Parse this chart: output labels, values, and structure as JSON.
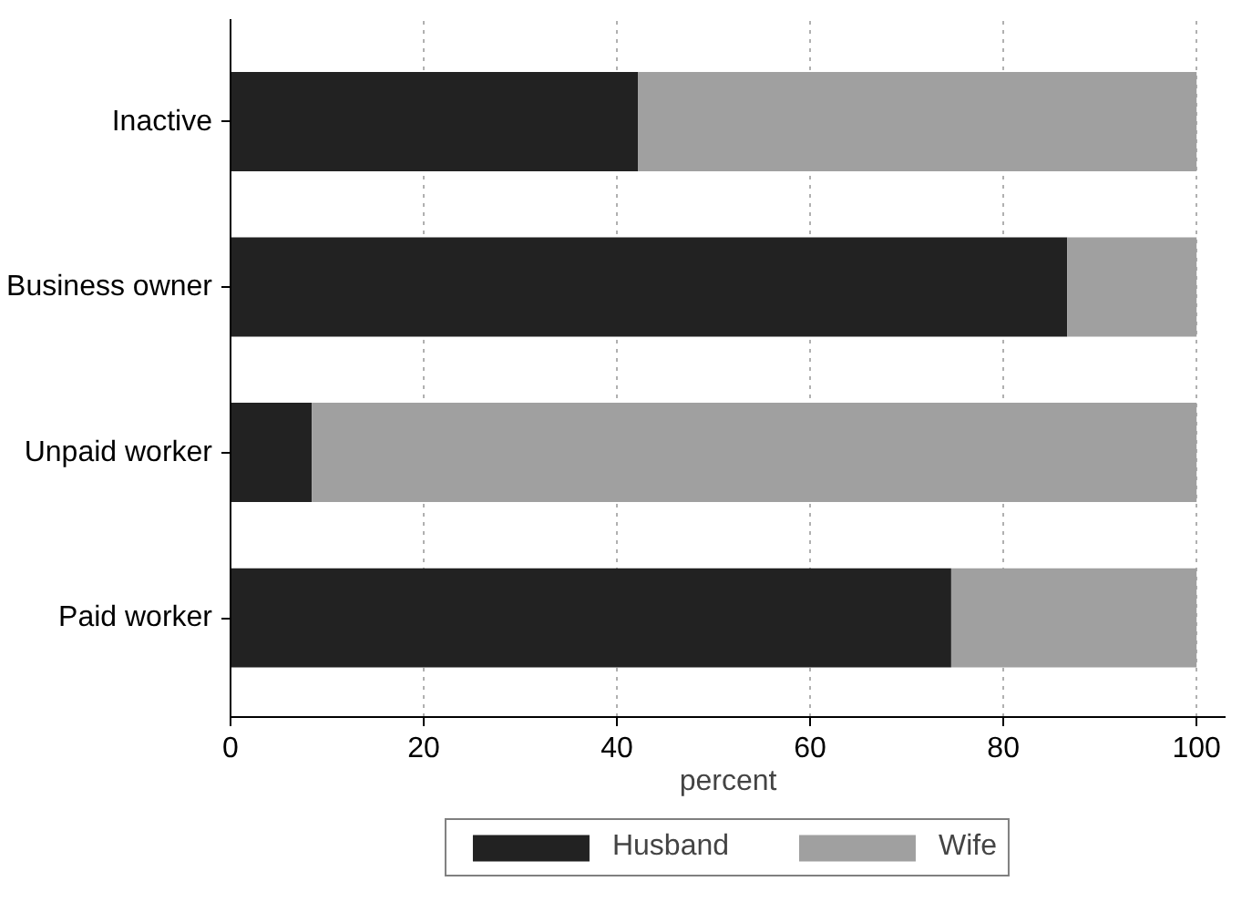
{
  "chart_data": {
    "type": "bar",
    "orientation": "horizontal",
    "stacked": true,
    "xlabel": "percent",
    "categories": [
      "Inactive",
      "Business owner",
      "Unpaid worker",
      "Paid worker"
    ],
    "series": [
      {
        "name": "Husband",
        "color": "#222222",
        "values": [
          42.2,
          86.6,
          8.4,
          74.6
        ]
      },
      {
        "name": "Wife",
        "color": "#a0a0a0",
        "values": [
          57.8,
          13.4,
          91.6,
          25.4
        ]
      }
    ],
    "xlim": [
      0,
      103
    ],
    "xticks": [
      0,
      20,
      40,
      60,
      80,
      100
    ],
    "grid": "x",
    "legend": "bottom"
  }
}
